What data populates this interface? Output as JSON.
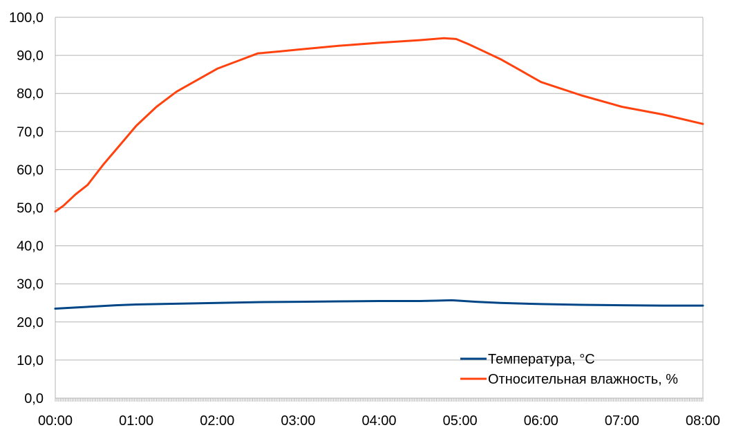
{
  "chart_data": {
    "type": "line",
    "x_ticks": [
      "00:00",
      "01:00",
      "02:00",
      "03:00",
      "04:00",
      "05:00",
      "06:00",
      "07:00",
      "08:00"
    ],
    "y_ticks": [
      "0,0",
      "10,0",
      "20,0",
      "30,0",
      "40,0",
      "50,0",
      "60,0",
      "70,0",
      "80,0",
      "90,0",
      "100,0"
    ],
    "xlim": [
      0,
      8
    ],
    "ylim": [
      0,
      100
    ],
    "grid": true,
    "legend_position": "bottom-right",
    "series": [
      {
        "name": "Температура, °С",
        "color": "#004586",
        "x": [
          0,
          0.25,
          0.5,
          0.75,
          1,
          1.5,
          2,
          2.5,
          3,
          3.5,
          4,
          4.5,
          4.9,
          5.2,
          5.5,
          6,
          6.5,
          7,
          7.5,
          8
        ],
        "values": [
          23.5,
          23.8,
          24.1,
          24.4,
          24.6,
          24.8,
          25.0,
          25.2,
          25.3,
          25.4,
          25.5,
          25.5,
          25.7,
          25.3,
          25.0,
          24.7,
          24.5,
          24.4,
          24.3,
          24.3
        ]
      },
      {
        "name": "Относительная влажность, %",
        "color": "#ff420e",
        "x": [
          0,
          0.1,
          0.25,
          0.4,
          0.6,
          0.8,
          1.0,
          1.25,
          1.5,
          1.75,
          2.0,
          2.25,
          2.5,
          2.75,
          3.0,
          3.5,
          4.0,
          4.5,
          4.8,
          4.95,
          5.1,
          5.25,
          5.5,
          5.75,
          6.0,
          6.5,
          7.0,
          7.5,
          8.0
        ],
        "values": [
          49.0,
          50.5,
          53.5,
          56.0,
          61.5,
          66.5,
          71.5,
          76.5,
          80.5,
          83.5,
          86.5,
          88.5,
          90.5,
          91.0,
          91.5,
          92.5,
          93.3,
          94.0,
          94.5,
          94.3,
          93.0,
          91.5,
          89.0,
          86.0,
          83.0,
          79.5,
          76.5,
          74.5,
          72.0
        ]
      }
    ]
  }
}
